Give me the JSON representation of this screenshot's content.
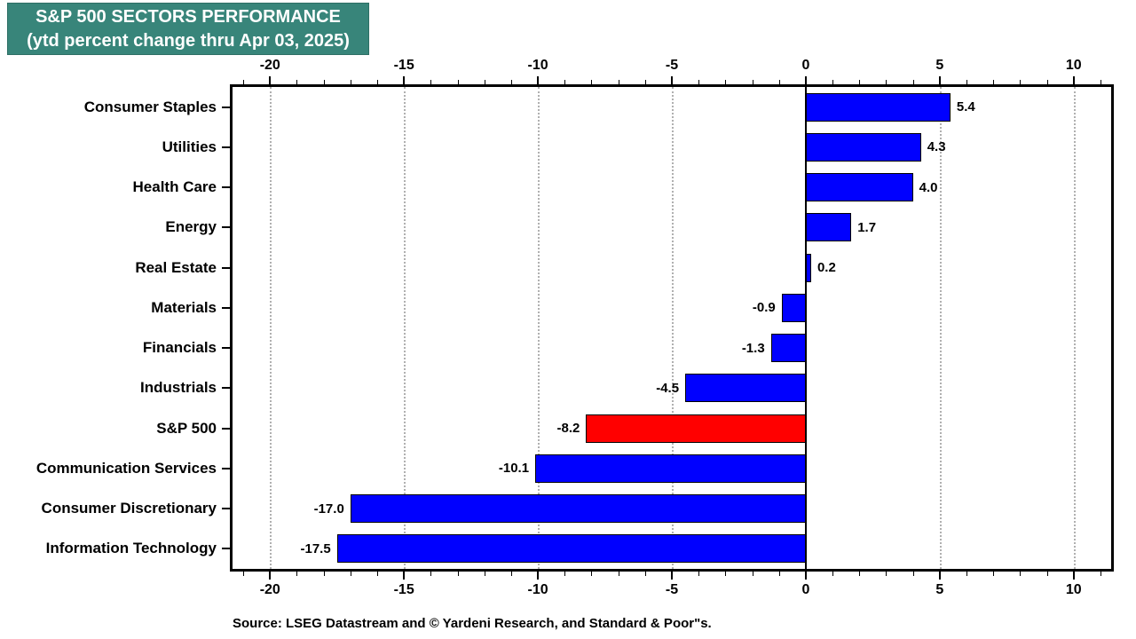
{
  "title": {
    "line1": "S&P 500 SECTORS PERFORMANCE",
    "line2": "(ytd percent change thru Apr 03, 2025)",
    "bg_color": "#38857A",
    "text_color": "#FFFFFF"
  },
  "source": "Source: LSEG Datastream and © Yardeni Research, and Standard & Poor\"s.",
  "chart_data": {
    "type": "bar",
    "orientation": "horizontal",
    "title": "S&P 500 SECTORS PERFORMANCE (ytd percent change thru Apr 03, 2025)",
    "categories": [
      "Consumer Staples",
      "Utilities",
      "Health Care",
      "Energy",
      "Real Estate",
      "Materials",
      "Financials",
      "Industrials",
      "S&P 500",
      "Communication Services",
      "Consumer Discretionary",
      "Information Technology"
    ],
    "values": [
      5.4,
      4.3,
      4.0,
      1.7,
      0.2,
      -0.9,
      -1.3,
      -4.5,
      -8.2,
      -10.1,
      -17.0,
      -17.5
    ],
    "value_labels": [
      "5.4",
      "4.3",
      "4.0",
      "1.7",
      "0.2",
      "-0.9",
      "-1.3",
      "-4.5",
      "-8.2",
      "-10.1",
      "-17.0",
      "-17.5"
    ],
    "highlight_category": "S&P 500",
    "colors": {
      "bar_default": "#0000FF",
      "bar_highlight": "#FF0000",
      "gridline": "#B0B0B0",
      "axis": "#000000"
    },
    "axis": {
      "min": -21.4,
      "max": 11.4,
      "major_ticks": [
        -20,
        -15,
        -10,
        -5,
        0,
        5,
        10
      ],
      "major_tick_labels": [
        "-20",
        "-15",
        "-10",
        "-5",
        "0",
        "5",
        "10"
      ],
      "minor_tick_step": 1,
      "gridlines": [
        -20,
        -15,
        -10,
        -5,
        5,
        10
      ],
      "zero_line": 0
    },
    "legend": null,
    "grid": "vertical-dotted"
  }
}
